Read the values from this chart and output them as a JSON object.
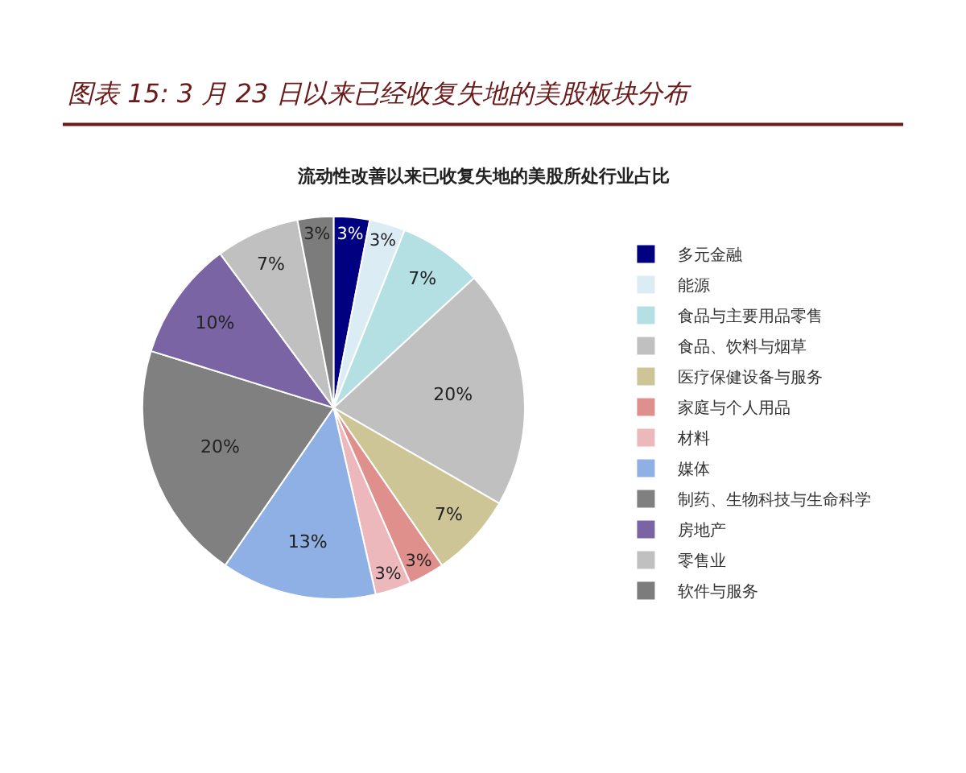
{
  "chart_data": {
    "type": "pie",
    "title": "图表 15: 3 月 23 日以来已经收复失地的美股板块分布",
    "subtitle": "流动性改善以来已收复失地的美股所处行业占比",
    "categories": [
      "多元金融",
      "能源",
      "食品与主要用品零售",
      "食品、饮料与烟草",
      "医疗保健设备与服务",
      "家庭与个人用品",
      "材料",
      "媒体",
      "制药、生物科技与生命科学",
      "房地产",
      "零售业",
      "软件与服务"
    ],
    "values": [
      3,
      3,
      7,
      20,
      7,
      3,
      3,
      13,
      20,
      10,
      7,
      3
    ],
    "value_labels": [
      "3%",
      "3%",
      "7%",
      "20%",
      "7%",
      "3%",
      "3%",
      "13%",
      "20%",
      "10%",
      "7%",
      "3%"
    ],
    "colors": [
      "#000080",
      "#dcecf4",
      "#b4e0e4",
      "#c0c0c0",
      "#cec596",
      "#e0908c",
      "#ecb8bc",
      "#8eb0e4",
      "#808080",
      "#7a64a4",
      "#c0c0c0",
      "#7c7c7c"
    ],
    "legend": "right"
  }
}
